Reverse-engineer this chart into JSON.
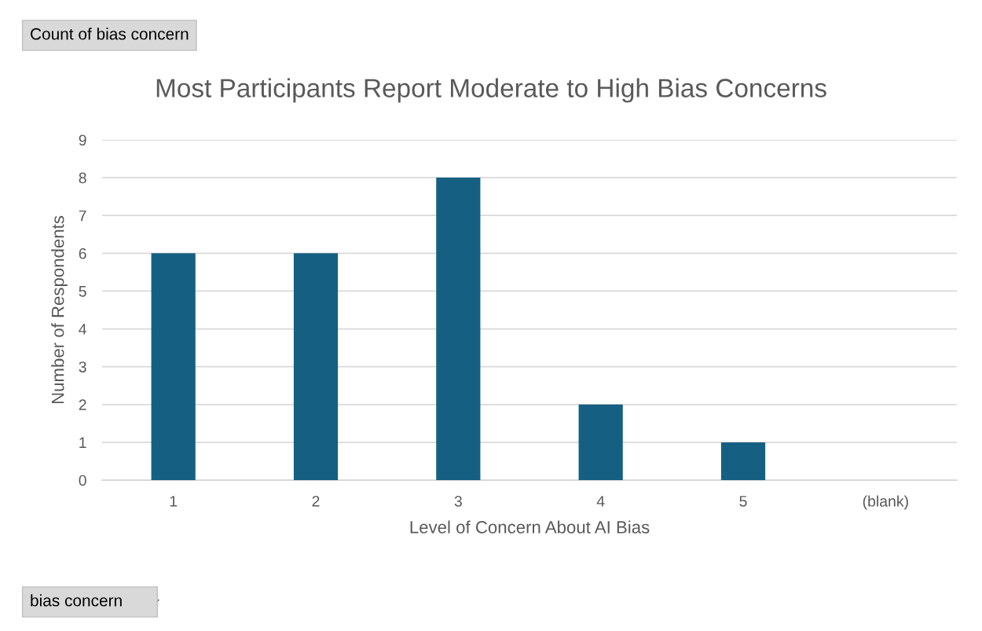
{
  "chart_data": {
    "type": "bar",
    "title": "Most Participants Report Moderate to High Bias Concerns",
    "xlabel": "Level of Concern About AI Bias",
    "ylabel": "Number of Respondents",
    "categories": [
      "1",
      "2",
      "3",
      "4",
      "5",
      "(blank)"
    ],
    "values": [
      6,
      6,
      8,
      2,
      1,
      null
    ],
    "color": "#156082",
    "ylim": [
      0,
      9
    ],
    "yticks": [
      0,
      1,
      2,
      3,
      4,
      5,
      6,
      7,
      8,
      9
    ],
    "grid": "y",
    "annotations": [
      "Count of bias concern",
      "bias concern"
    ]
  }
}
